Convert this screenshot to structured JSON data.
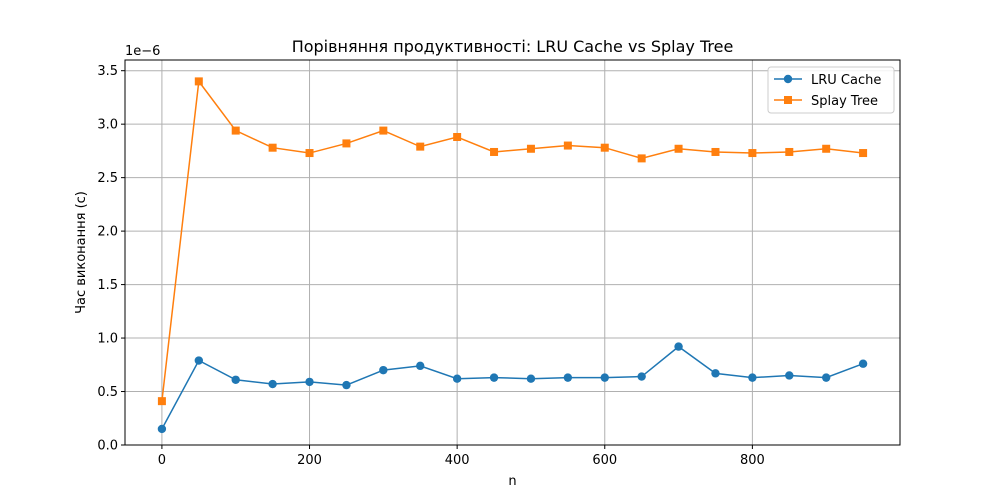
{
  "chart_data": {
    "type": "line",
    "title": "Порівняння продуктивності: LRU Cache vs Splay Tree",
    "xlabel": "n",
    "ylabel": "Час виконання (с)",
    "y_offset_label": "1e−6",
    "xlim": [
      -50,
      1000
    ],
    "ylim": [
      0,
      3.6
    ],
    "y_unit_scale": 1e-06,
    "xticks": [
      0,
      200,
      400,
      600,
      800
    ],
    "xtick_labels": [
      "0",
      "200",
      "400",
      "600",
      "800"
    ],
    "yticks": [
      0,
      0.5,
      1.0,
      1.5,
      2.0,
      2.5,
      3.0,
      3.5
    ],
    "ytick_labels": [
      "0.0",
      "0.5",
      "1.0",
      "1.5",
      "2.0",
      "2.5",
      "3.0",
      "3.5"
    ],
    "grid": true,
    "legend_position": "top-right",
    "x": [
      0,
      50,
      100,
      150,
      200,
      250,
      300,
      350,
      400,
      450,
      500,
      550,
      600,
      650,
      700,
      750,
      800,
      850,
      900,
      950
    ],
    "series": [
      {
        "name": "LRU Cache",
        "color": "#1f77b4",
        "marker": "circle",
        "values": [
          0.15,
          0.79,
          0.61,
          0.57,
          0.59,
          0.56,
          0.7,
          0.74,
          0.62,
          0.63,
          0.62,
          0.63,
          0.63,
          0.64,
          0.92,
          0.67,
          0.63,
          0.65,
          0.63,
          0.76
        ]
      },
      {
        "name": "Splay Tree",
        "color": "#ff7f0e",
        "marker": "square",
        "values": [
          0.41,
          3.4,
          2.94,
          2.78,
          2.73,
          2.82,
          2.94,
          2.79,
          2.88,
          2.74,
          2.77,
          2.8,
          2.78,
          2.68,
          2.77,
          2.74,
          2.73,
          2.74,
          2.77,
          2.73
        ]
      }
    ]
  }
}
